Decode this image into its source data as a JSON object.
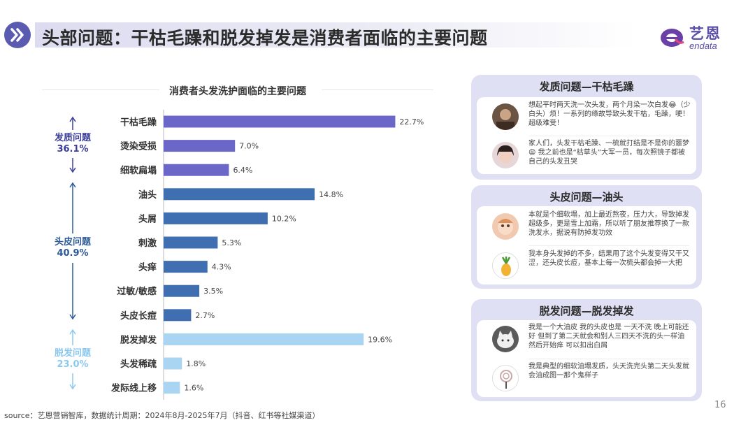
{
  "header": {
    "title": "头部问题：干枯毛躁和脱发掉发是消费者面临的主要问题",
    "logo_cn": "艺恩",
    "logo_en": "endata"
  },
  "chart_data": {
    "type": "bar",
    "orientation": "horizontal",
    "title": "消费者头发洗护面临的主要问题",
    "categories": [
      "干枯毛躁",
      "烫染受损",
      "细软扁塌",
      "油头",
      "头屑",
      "刺激",
      "头痒",
      "过敏/敏感",
      "头皮长痘",
      "脱发掉发",
      "头发稀疏",
      "发际线上移"
    ],
    "values": [
      22.7,
      7.0,
      6.4,
      14.8,
      10.2,
      5.3,
      4.3,
      3.5,
      2.7,
      19.6,
      1.8,
      1.6
    ],
    "value_labels": [
      "22.7%",
      "7.0%",
      "6.4%",
      "14.8%",
      "10.2%",
      "5.3%",
      "4.3%",
      "3.5%",
      "2.7%",
      "19.6%",
      "1.8%",
      "1.6%"
    ],
    "unit": "%",
    "groups": [
      {
        "name": "发质问题",
        "total": "36.1%",
        "start": 0,
        "end": 2,
        "color": "#6b67c9"
      },
      {
        "name": "头皮问题",
        "total": "40.9%",
        "start": 3,
        "end": 8,
        "color": "#3f6fb0"
      },
      {
        "name": "脱发问题",
        "total": "23.0%",
        "start": 9,
        "end": 11,
        "color": "#a9d5f3"
      }
    ],
    "group_label_colors": [
      "#3b3f99",
      "#2c5a97",
      "#8cc8ee"
    ]
  },
  "panels": [
    {
      "title": "发质问题—干枯毛躁",
      "quotes": [
        {
          "avatar": "avatar-photo-brown",
          "text": "想起平时两天洗一次头发，两个月染一次白发😂（少白头）烦！一系列的缘故导致头发干枯，毛躁，哽！超级难受！"
        },
        {
          "avatar": "avatar-photo-girl",
          "text": "家人们，头发干枯毛躁、一梳就打结是不是你的噩梦😩 我之前也是“枯草头”大军一员，每次照镜子都被自己的头发丑哭"
        }
      ]
    },
    {
      "title": "头皮问题—油头",
      "quotes": [
        {
          "avatar": "avatar-photo-child",
          "text": "本就是个细软塌，加上最近熬夜，压力大，导致掉发超级多，更是雪上加霜，所以听了朋友推荐换了一款洗发水，据说有防掉发功效"
        },
        {
          "avatar": "avatar-pineapple",
          "text": "我本身头发掉的不多，结果用了这个头发变得又干又涩，还头皮长痘，基本上每一次梳头都会掉一大把"
        }
      ]
    },
    {
      "title": "脱发问题—脱发掉发",
      "quotes": [
        {
          "avatar": "avatar-photo-cat",
          "text": "我是一个大油皮 我的头皮也是 一天不洗 晚上可能还好 但到了第二天就会和别人三四天不洗的头一样油 然后开始痒 可以扣出白屑"
        },
        {
          "avatar": "avatar-lollipop",
          "text": "我是典型的细软油塌发质，头天洗完头第二天头发就会油成图一那个鬼样子"
        }
      ]
    }
  ],
  "footer": {
    "source": "source：艺恩营销智库，数据统计周期：2024年8月-2025年7月（抖音、红书等社媒渠道）",
    "page_number": "16"
  },
  "colors": {
    "hair_quality": "#6b67c9",
    "scalp": "#3f6fb0",
    "hair_loss": "#a9d5f3",
    "panel_bg": "#dfe0f4",
    "brand": "#5a4fa8"
  }
}
